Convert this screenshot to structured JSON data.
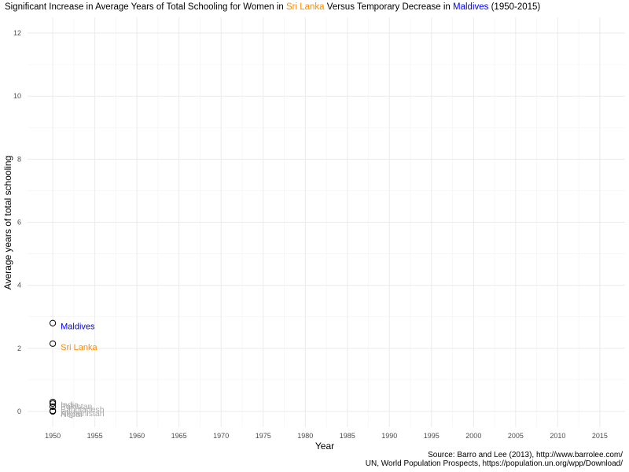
{
  "title": {
    "part1": "Significant Increase in Average Years of Total Schooling for Women in ",
    "highlight1": "Sri Lanka",
    "part2": "  Versus Temporary Decrease in ",
    "highlight2": "Maldives",
    "part3": "  (1950-2015)"
  },
  "source": {
    "line1": "Source: Barro and Lee (2013), http://www.barrolee.com/",
    "line2": "UN, World Population Prospects, https://population.un.org/wpp/Download/"
  },
  "chart_data": {
    "type": "scatter",
    "title": "Significant Increase in Average Years of Total Schooling for Women in Sri Lanka  Versus Temporary Decrease in Maldives  (1950-2015)",
    "xlabel": "Year",
    "ylabel": "Average years of total schooling",
    "xlim": [
      1947,
      2018
    ],
    "ylim": [
      -0.5,
      12.5
    ],
    "xticks": [
      "1950",
      "1955",
      "1960",
      "1965",
      "1970",
      "1975",
      "1980",
      "1985",
      "1990",
      "1995",
      "2000",
      "2005",
      "2010",
      "2015"
    ],
    "yticks": [
      "0",
      "2",
      "4",
      "6",
      "8",
      "10",
      "12"
    ],
    "grid": true,
    "colors": {
      "Sri Lanka": "#FF8C00",
      "Maldives": "#0000FF",
      "others": "#A9A9A9"
    },
    "points": [
      {
        "label": "Maldives",
        "x": 1950,
        "y": 2.8,
        "color": "#0000FF"
      },
      {
        "label": "Sri Lanka",
        "x": 1950,
        "y": 2.15,
        "color": "#FF8C00"
      },
      {
        "label": "India",
        "x": 1950,
        "y": 0.3,
        "color": "#A9A9A9"
      },
      {
        "label": "Pakistan",
        "x": 1950,
        "y": 0.25,
        "color": "#A9A9A9"
      },
      {
        "label": "Bangladesh",
        "x": 1950,
        "y": 0.15,
        "color": "#A9A9A9"
      },
      {
        "label": "Afghanistan",
        "x": 1950,
        "y": 0.02,
        "color": "#A9A9A9"
      },
      {
        "label": "Nepal",
        "x": 1950,
        "y": 0.0,
        "color": "#A9A9A9"
      }
    ]
  }
}
